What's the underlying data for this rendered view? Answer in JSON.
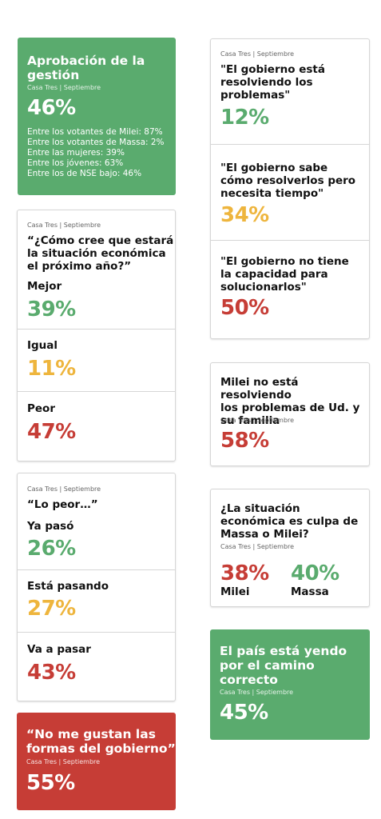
{
  "colors": {
    "green": "#5aab6e",
    "red": "#c63d36",
    "yellow": "#eeb53d"
  },
  "aprobacion": {
    "title_l1": "Aprobación de la",
    "title_l2": "gestión",
    "source": "Casa Tres | Septiembre",
    "value": "46%",
    "breakdown": [
      "Entre los votantes de Milei: 87%",
      "Entre los votantes de Massa: 2%",
      "Entre las mujeres: 39%",
      "Entre los jóvenes: 63%",
      "Entre los de NSE bajo: 46%"
    ]
  },
  "gobierno": {
    "source": "Casa Tres | Septiembre",
    "items": [
      {
        "l1": "\"El gobierno está",
        "l2": "resolviendo los",
        "l3": "problemas\"",
        "value": "12%"
      },
      {
        "l1": "\"El gobierno sabe",
        "l2": "cómo resolverlos pero",
        "l3": "necesita tiempo\"",
        "value": "34%"
      },
      {
        "l1": "\"El gobierno no tiene",
        "l2": "la capacidad para",
        "l3": "solucionarlos\"",
        "value": "50%"
      }
    ]
  },
  "economia": {
    "source": "Casa Tres | Septiembre",
    "q_l1": "“¿Cómo cree que estará",
    "q_l2": "la situación económica",
    "q_l3": "el próximo año?”",
    "items": [
      {
        "label": "Mejor",
        "value": "39%"
      },
      {
        "label": "Igual",
        "value": "11%"
      },
      {
        "label": "Peor",
        "value": "47%"
      }
    ]
  },
  "milei_resolviendo": {
    "l1": "Milei no está resolviendo",
    "l2": "los problemas de Ud. y",
    "l3": "su familia",
    "source": "Casa Tres | Septiembre",
    "value": "58%"
  },
  "lo_peor": {
    "source": "Casa Tres | Septiembre",
    "question": "“Lo peor…”",
    "items": [
      {
        "label": "Ya pasó",
        "value": "26%"
      },
      {
        "label": "Está pasando",
        "value": "27%"
      },
      {
        "label": "Va a pasar",
        "value": "43%"
      }
    ]
  },
  "culpa": {
    "l1": "¿La situación",
    "l2": "económica es culpa de",
    "l3": "Massa o Milei?",
    "source": "Casa Tres | Septiembre",
    "milei_value": "38%",
    "milei_label": "Milei",
    "massa_value": "40%",
    "massa_label": "Massa"
  },
  "camino": {
    "l1": "El país está yendo",
    "l2": "por el camino",
    "l3": "correcto",
    "source": "Casa Tres | Septiembre",
    "value": "45%"
  },
  "formas": {
    "l1": "“No me gustan las",
    "l2": "formas del gobierno”",
    "source": "Casa Tres | Septiembre",
    "value": "55%"
  }
}
